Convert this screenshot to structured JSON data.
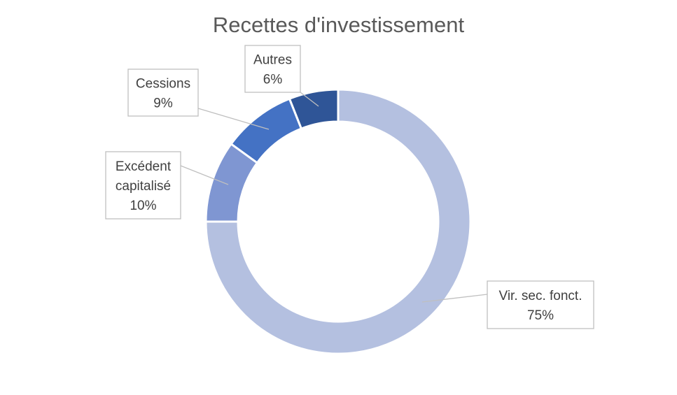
{
  "chart_data": {
    "type": "pie",
    "subtype": "donut",
    "title": "Recettes d'investissement",
    "slices": [
      {
        "label": "Autres",
        "value": 6,
        "pct_label": "6%",
        "color": "#2f5597"
      },
      {
        "label": "Cessions",
        "value": 9,
        "pct_label": "9%",
        "color": "#4472c4"
      },
      {
        "label": "Excédent capitalisé",
        "label_lines": [
          "Excédent",
          "capitalisé"
        ],
        "value": 10,
        "pct_label": "10%",
        "color": "#7f96d2"
      },
      {
        "label": "Vir. sec. fonct.",
        "value": 75,
        "pct_label": "75%",
        "color": "#b4c0e0"
      }
    ],
    "legend": "none",
    "start_angle": "top, counter-clockwise"
  }
}
